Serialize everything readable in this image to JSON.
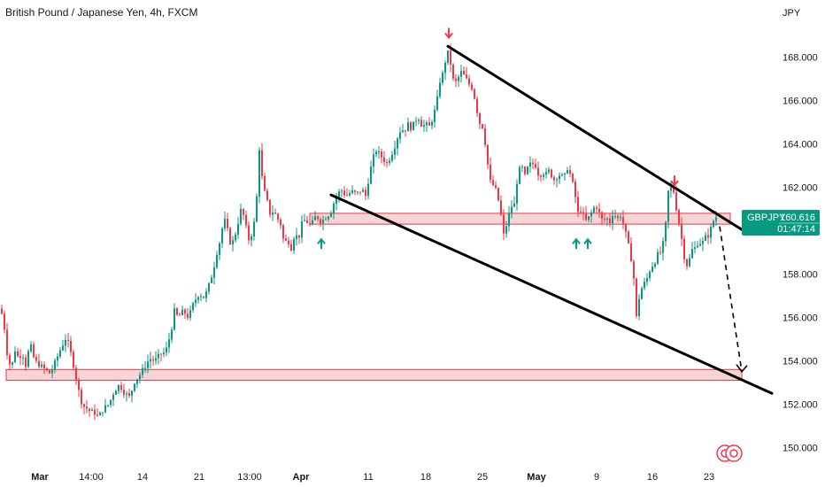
{
  "title": "British Pound / Japanese Yen, 4h, FXCM",
  "currency": "JPY",
  "symbol_badge": {
    "symbol": "GBPJPY",
    "price": "160.616",
    "countdown": "01:47:14"
  },
  "colors": {
    "up": "#089981",
    "down": "#f23645",
    "zone_fill": "#f7c5c8",
    "zone_border": "#e53945",
    "trendline": "#000000",
    "badge_bg": "#089981",
    "arrow_up": "#089981",
    "arrow_down": "#f23645",
    "axis_text": "#131722",
    "separator": "#e0e3eb"
  },
  "chart_data": {
    "type": "candlestick",
    "timeframe": "4h",
    "ylim": [
      149.3,
      171.0
    ],
    "y_ticks": [
      "150.000",
      "152.000",
      "154.000",
      "156.000",
      "158.000",
      "160.000",
      "162.000",
      "164.000",
      "166.000",
      "168.000"
    ],
    "x_ticks": [
      "Mar",
      "14:00",
      "14",
      "21",
      "13:00",
      "Apr",
      "11",
      "18",
      "25",
      "May",
      "9",
      "16",
      "23"
    ],
    "grid": false,
    "last_price": 160.616,
    "price_path": [
      [
        0,
        156.4
      ],
      [
        4,
        155.5
      ],
      [
        8,
        154.0
      ],
      [
        12,
        153.7
      ],
      [
        16,
        154.5
      ],
      [
        20,
        154.1
      ],
      [
        24,
        154.4
      ],
      [
        28,
        153.8
      ],
      [
        33,
        154.8
      ],
      [
        38,
        154.0
      ],
      [
        44,
        153.8
      ],
      [
        50,
        153.6
      ],
      [
        56,
        153.4
      ],
      [
        62,
        154.0
      ],
      [
        68,
        154.6
      ],
      [
        74,
        155.1
      ],
      [
        80,
        154.2
      ],
      [
        86,
        153.0
      ],
      [
        90,
        152.2
      ],
      [
        94,
        151.9
      ],
      [
        100,
        151.7
      ],
      [
        106,
        151.6
      ],
      [
        110,
        151.4
      ],
      [
        116,
        151.8
      ],
      [
        122,
        152.0
      ],
      [
        128,
        152.6
      ],
      [
        134,
        152.9
      ],
      [
        140,
        152.5
      ],
      [
        146,
        152.3
      ],
      [
        150,
        153.0
      ],
      [
        156,
        153.3
      ],
      [
        162,
        153.7
      ],
      [
        168,
        154.1
      ],
      [
        174,
        154.0
      ],
      [
        180,
        154.3
      ],
      [
        186,
        154.4
      ],
      [
        192,
        155.3
      ],
      [
        196,
        156.3
      ],
      [
        200,
        156.0
      ],
      [
        206,
        156.3
      ],
      [
        212,
        156.0
      ],
      [
        218,
        156.7
      ],
      [
        224,
        157.1
      ],
      [
        230,
        156.9
      ],
      [
        236,
        157.6
      ],
      [
        240,
        158.2
      ],
      [
        244,
        159.0
      ],
      [
        248,
        159.6
      ],
      [
        252,
        160.6
      ],
      [
        256,
        160.0
      ],
      [
        260,
        159.3
      ],
      [
        264,
        159.7
      ],
      [
        268,
        160.4
      ],
      [
        272,
        161.1
      ],
      [
        276,
        160.3
      ],
      [
        280,
        159.6
      ],
      [
        284,
        159.9
      ],
      [
        288,
        160.8
      ],
      [
        292,
        163.8
      ],
      [
        296,
        162.0
      ],
      [
        300,
        161.5
      ],
      [
        304,
        160.8
      ],
      [
        308,
        160.9
      ],
      [
        312,
        160.6
      ],
      [
        316,
        160.3
      ],
      [
        320,
        159.4
      ],
      [
        324,
        159.6
      ],
      [
        328,
        159.2
      ],
      [
        332,
        159.9
      ],
      [
        336,
        159.6
      ],
      [
        340,
        160.3
      ],
      [
        344,
        160.5
      ],
      [
        350,
        160.2
      ],
      [
        356,
        160.7
      ],
      [
        362,
        160.4
      ],
      [
        366,
        160.6
      ],
      [
        372,
        160.8
      ],
      [
        378,
        161.5
      ],
      [
        384,
        161.9
      ],
      [
        390,
        161.6
      ],
      [
        396,
        161.8
      ],
      [
        402,
        161.7
      ],
      [
        408,
        161.9
      ],
      [
        412,
        161.6
      ],
      [
        416,
        162.5
      ],
      [
        420,
        163.3
      ],
      [
        424,
        163.7
      ],
      [
        428,
        163.5
      ],
      [
        432,
        163.3
      ],
      [
        436,
        163.1
      ],
      [
        440,
        163.4
      ],
      [
        444,
        163.8
      ],
      [
        448,
        164.3
      ],
      [
        452,
        164.7
      ],
      [
        456,
        164.6
      ],
      [
        460,
        164.9
      ],
      [
        464,
        164.7
      ],
      [
        468,
        165.1
      ],
      [
        472,
        165.2
      ],
      [
        476,
        164.8
      ],
      [
        480,
        164.9
      ],
      [
        484,
        164.8
      ],
      [
        488,
        165.2
      ],
      [
        492,
        165.8
      ],
      [
        496,
        166.9
      ],
      [
        500,
        167.3
      ],
      [
        504,
        168.3
      ],
      [
        506,
        168.1
      ],
      [
        508,
        167.7
      ],
      [
        512,
        166.7
      ],
      [
        516,
        167.0
      ],
      [
        520,
        167.3
      ],
      [
        524,
        167.1
      ],
      [
        528,
        166.8
      ],
      [
        532,
        166.6
      ],
      [
        536,
        166.0
      ],
      [
        540,
        165.0
      ],
      [
        544,
        164.8
      ],
      [
        548,
        163.8
      ],
      [
        552,
        162.3
      ],
      [
        556,
        162.1
      ],
      [
        560,
        161.8
      ],
      [
        564,
        161.0
      ],
      [
        568,
        159.8
      ],
      [
        572,
        160.4
      ],
      [
        576,
        161.1
      ],
      [
        580,
        161.2
      ],
      [
        584,
        162.6
      ],
      [
        588,
        163.0
      ],
      [
        592,
        162.5
      ],
      [
        596,
        163.0
      ],
      [
        600,
        163.1
      ],
      [
        604,
        163.0
      ],
      [
        608,
        162.5
      ],
      [
        612,
        162.7
      ],
      [
        616,
        162.6
      ],
      [
        620,
        162.8
      ],
      [
        624,
        162.3
      ],
      [
        628,
        162.5
      ],
      [
        632,
        162.6
      ],
      [
        636,
        162.4
      ],
      [
        640,
        162.9
      ],
      [
        644,
        162.5
      ],
      [
        648,
        161.8
      ],
      [
        652,
        160.8
      ],
      [
        656,
        161.0
      ],
      [
        660,
        160.4
      ],
      [
        664,
        160.6
      ],
      [
        668,
        160.9
      ],
      [
        672,
        161.2
      ],
      [
        676,
        160.8
      ],
      [
        680,
        160.4
      ],
      [
        684,
        160.6
      ],
      [
        688,
        160.4
      ],
      [
        692,
        160.9
      ],
      [
        696,
        160.5
      ],
      [
        700,
        160.7
      ],
      [
        704,
        160.2
      ],
      [
        708,
        159.5
      ],
      [
        712,
        158.7
      ],
      [
        716,
        157.5
      ],
      [
        718,
        156.0
      ],
      [
        722,
        157.2
      ],
      [
        726,
        157.5
      ],
      [
        730,
        157.8
      ],
      [
        734,
        158.3
      ],
      [
        738,
        158.5
      ],
      [
        742,
        158.9
      ],
      [
        746,
        159.0
      ],
      [
        750,
        159.8
      ],
      [
        754,
        161.8
      ],
      [
        756,
        162.0
      ],
      [
        760,
        161.8
      ],
      [
        764,
        160.8
      ],
      [
        768,
        159.9
      ],
      [
        772,
        158.8
      ],
      [
        776,
        158.3
      ],
      [
        780,
        159.1
      ],
      [
        784,
        159.2
      ],
      [
        788,
        159.5
      ],
      [
        792,
        159.4
      ],
      [
        796,
        159.7
      ],
      [
        800,
        159.8
      ],
      [
        804,
        160.4
      ],
      [
        808,
        160.62
      ]
    ],
    "horizontal_zones": [
      {
        "y_low": 160.3,
        "y_high": 160.8,
        "x_start": 350,
        "x_end": 825
      },
      {
        "y_low": 153.1,
        "y_high": 153.6,
        "x_start": 7,
        "x_end": 838
      }
    ],
    "trendlines": [
      {
        "kind": "resistance",
        "points": [
          [
            506,
            168.5
          ],
          [
            840,
            160.0
          ]
        ]
      },
      {
        "kind": "support",
        "points": [
          [
            374,
            161.65
          ],
          [
            872,
            152.5
          ]
        ]
      }
    ],
    "projection": {
      "style": "dashed",
      "from": [
        813,
        160.2
      ],
      "to": [
        838,
        153.5
      ]
    },
    "markers": [
      {
        "kind": "arrow-down",
        "x": 507,
        "price": 169.1
      },
      {
        "kind": "arrow-down",
        "x": 762,
        "price": 162.3
      },
      {
        "kind": "arrow-up",
        "x": 363,
        "price": 159.4
      },
      {
        "kind": "arrow-up",
        "x": 651,
        "price": 159.4
      },
      {
        "kind": "arrow-up",
        "x": 664,
        "price": 159.4
      }
    ]
  }
}
